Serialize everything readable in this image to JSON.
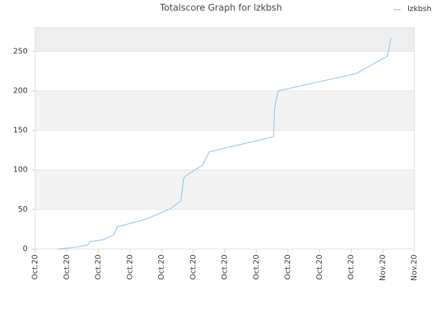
{
  "chart_data": {
    "type": "line",
    "title": "Totalscore Graph for lzkbsh",
    "x": [
      0.72,
      1.25,
      1.66,
      1.73,
      1.88,
      2.16,
      2.49,
      2.6,
      3.52,
      4.28,
      4.61,
      4.7,
      4.74,
      5.29,
      5.51,
      7.54,
      7.56,
      7.58,
      7.69,
      10.16,
      11.15,
      11.26
    ],
    "series": [
      {
        "name": "lzkbsh",
        "color": "#90c4ee",
        "values": [
          0,
          2,
          5,
          9,
          10,
          12,
          18,
          28,
          38,
          51,
          61,
          89,
          92,
          106,
          123,
          142,
          164,
          179,
          200,
          222,
          244,
          267
        ]
      }
    ],
    "xlim": [
      0,
      12
    ],
    "xticks": [
      {
        "value": 0,
        "label": "Oct.20"
      },
      {
        "value": 1,
        "label": "Oct.20"
      },
      {
        "value": 2,
        "label": "Oct.20"
      },
      {
        "value": 3,
        "label": "Oct.20"
      },
      {
        "value": 4,
        "label": "Oct.20"
      },
      {
        "value": 5,
        "label": "Oct.20"
      },
      {
        "value": 6,
        "label": "Oct.20"
      },
      {
        "value": 7,
        "label": "Oct.20"
      },
      {
        "value": 8,
        "label": "Oct.20"
      },
      {
        "value": 9,
        "label": "Oct.20"
      },
      {
        "value": 10,
        "label": "Oct.20"
      },
      {
        "value": 11,
        "label": "Nov.20"
      },
      {
        "value": 12,
        "label": "Nov.20"
      }
    ],
    "ylim": [
      0,
      280
    ],
    "yticks": [
      0,
      50,
      100,
      150,
      200,
      250
    ],
    "grid": true,
    "legend": "top-right"
  }
}
